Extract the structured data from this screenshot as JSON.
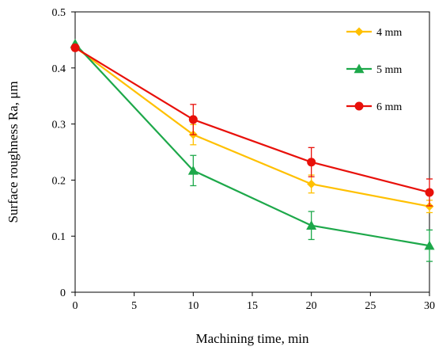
{
  "chart_data": {
    "type": "line",
    "xlabel": "Machining time, min",
    "ylabel": "Surface roughness Ra,  μm",
    "xlim": [
      0,
      30
    ],
    "ylim": [
      0,
      0.5
    ],
    "xticks": [
      "0",
      "5",
      "10",
      "15",
      "20",
      "25",
      "30"
    ],
    "yticks": [
      "0",
      "0.1",
      "0.2",
      "0.3",
      "0.4",
      "0.5"
    ],
    "legend_position": "top-right",
    "grid": false,
    "series": [
      {
        "name": "4 mm",
        "color": "#FFC000",
        "marker": "diamond",
        "x": [
          0,
          10,
          20,
          30
        ],
        "y": [
          0.437,
          0.281,
          0.193,
          0.153
        ],
        "err": [
          0,
          0.018,
          0.016,
          0.011
        ]
      },
      {
        "name": "5 mm",
        "color": "#1DA84A",
        "marker": "triangle",
        "x": [
          0,
          10,
          20,
          30
        ],
        "y": [
          0.443,
          0.217,
          0.119,
          0.083
        ],
        "err": [
          0,
          0.027,
          0.025,
          0.028
        ]
      },
      {
        "name": "6 mm",
        "color": "#E8100A",
        "marker": "circle",
        "x": [
          0,
          10,
          20,
          30
        ],
        "y": [
          0.436,
          0.308,
          0.232,
          0.178
        ],
        "err": [
          0,
          0.027,
          0.026,
          0.024
        ]
      }
    ]
  }
}
